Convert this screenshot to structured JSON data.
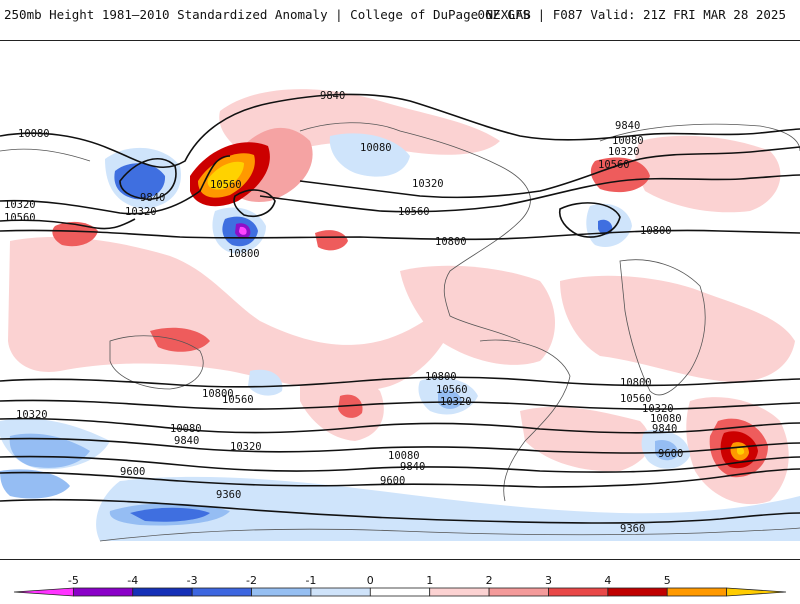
{
  "header": {
    "title_left": "250mb Height 1981–2010 Standardized Anomaly | College of DuPage NEXLAB",
    "title_right": "06Z GFS | F087 Valid: 21Z FRI MAR 28 2025"
  },
  "map": {
    "contour_labels": [
      "10080",
      "9840",
      "10560",
      "10320",
      "10800",
      "9600",
      "9360"
    ],
    "anomaly_colors": {
      "weak_positive": "#fbd2d2",
      "moderate_positive": "#f5a3a3",
      "strong_positive": "#ee5c5c",
      "very_strong_positive": "#cc0000",
      "extreme_positive": "#ff9900",
      "peak_positive": "#ffd200",
      "weak_negative": "#cfe4fb",
      "moderate_negative": "#95bdf3",
      "strong_negative": "#3f6fe0",
      "very_strong_negative": "#1a3cc0",
      "extreme_negative": "#8c10c8",
      "peak_negative": "#ff44ff"
    }
  },
  "colorbar": {
    "ticks": [
      "-5",
      "-4",
      "-3",
      "-2",
      "-1",
      "0",
      "1",
      "2",
      "3",
      "4",
      "5"
    ],
    "colors": [
      "#ff33ff",
      "#8a00c8",
      "#1530b8",
      "#3d66e0",
      "#96bff2",
      "#cfe3fa",
      "#ffffff",
      "#fcd2d2",
      "#f49a9a",
      "#e94848",
      "#c00000",
      "#ff9900",
      "#ffcc00"
    ]
  }
}
